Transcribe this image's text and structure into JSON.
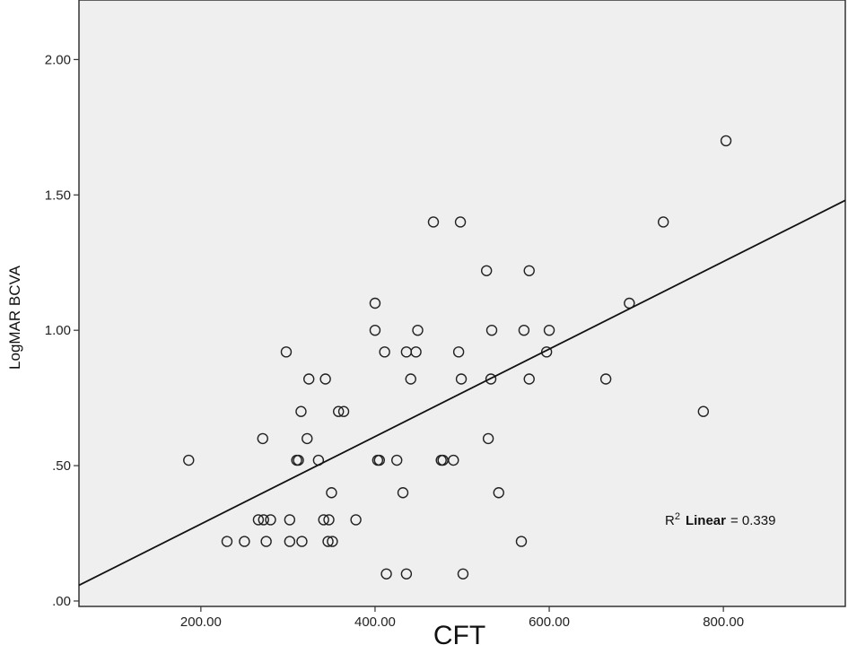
{
  "chart_data": {
    "type": "scatter",
    "xlabel": "CFT",
    "ylabel": "LogMAR BCVA",
    "xlim": [
      60,
      940
    ],
    "ylim": [
      -0.02,
      2.22
    ],
    "x_ticks": [
      200,
      400,
      600,
      800
    ],
    "x_tick_labels": [
      "200.00",
      "400.00",
      "600.00",
      "800.00"
    ],
    "y_ticks": [
      0,
      0.5,
      1.0,
      1.5,
      2.0
    ],
    "y_tick_labels": [
      ".00",
      ".50",
      "1.00",
      "1.50",
      "2.00"
    ],
    "grid": false,
    "background": "#efefef",
    "points": [
      {
        "x": 186,
        "y": 0.52
      },
      {
        "x": 230,
        "y": 0.22
      },
      {
        "x": 250,
        "y": 0.22
      },
      {
        "x": 266,
        "y": 0.3
      },
      {
        "x": 271,
        "y": 0.6
      },
      {
        "x": 272,
        "y": 0.3
      },
      {
        "x": 275,
        "y": 0.22
      },
      {
        "x": 280,
        "y": 0.3
      },
      {
        "x": 298,
        "y": 0.92
      },
      {
        "x": 302,
        "y": 0.3
      },
      {
        "x": 302,
        "y": 0.22
      },
      {
        "x": 310,
        "y": 0.52
      },
      {
        "x": 312,
        "y": 0.52
      },
      {
        "x": 315,
        "y": 0.7
      },
      {
        "x": 316,
        "y": 0.22
      },
      {
        "x": 322,
        "y": 0.6
      },
      {
        "x": 324,
        "y": 0.82
      },
      {
        "x": 335,
        "y": 0.52
      },
      {
        "x": 341,
        "y": 0.3
      },
      {
        "x": 343,
        "y": 0.82
      },
      {
        "x": 346,
        "y": 0.22
      },
      {
        "x": 347,
        "y": 0.3
      },
      {
        "x": 350,
        "y": 0.4
      },
      {
        "x": 351,
        "y": 0.22
      },
      {
        "x": 358,
        "y": 0.7
      },
      {
        "x": 364,
        "y": 0.7
      },
      {
        "x": 378,
        "y": 0.3
      },
      {
        "x": 400,
        "y": 1.1
      },
      {
        "x": 400,
        "y": 1.0
      },
      {
        "x": 403,
        "y": 0.52
      },
      {
        "x": 405,
        "y": 0.52
      },
      {
        "x": 411,
        "y": 0.92
      },
      {
        "x": 413,
        "y": 0.1
      },
      {
        "x": 425,
        "y": 0.52
      },
      {
        "x": 432,
        "y": 0.4
      },
      {
        "x": 436,
        "y": 0.92
      },
      {
        "x": 436,
        "y": 0.1
      },
      {
        "x": 441,
        "y": 0.82
      },
      {
        "x": 447,
        "y": 0.92
      },
      {
        "x": 449,
        "y": 1.0
      },
      {
        "x": 467,
        "y": 1.4
      },
      {
        "x": 476,
        "y": 0.52
      },
      {
        "x": 478,
        "y": 0.52
      },
      {
        "x": 490,
        "y": 0.52
      },
      {
        "x": 496,
        "y": 0.92
      },
      {
        "x": 498,
        "y": 1.4
      },
      {
        "x": 499,
        "y": 0.82
      },
      {
        "x": 501,
        "y": 0.1
      },
      {
        "x": 528,
        "y": 1.22
      },
      {
        "x": 530,
        "y": 0.6
      },
      {
        "x": 533,
        "y": 0.82
      },
      {
        "x": 534,
        "y": 1.0
      },
      {
        "x": 542,
        "y": 0.4
      },
      {
        "x": 568,
        "y": 0.22
      },
      {
        "x": 571,
        "y": 1.0
      },
      {
        "x": 577,
        "y": 1.22
      },
      {
        "x": 577,
        "y": 0.82
      },
      {
        "x": 597,
        "y": 0.92
      },
      {
        "x": 600,
        "y": 1.0
      },
      {
        "x": 665,
        "y": 0.82
      },
      {
        "x": 692,
        "y": 1.1
      },
      {
        "x": 731,
        "y": 1.4
      },
      {
        "x": 777,
        "y": 0.7
      },
      {
        "x": 803,
        "y": 1.7
      }
    ],
    "fit_line": {
      "type": "linear",
      "x": [
        60,
        940
      ],
      "y": [
        0.058,
        1.48
      ]
    },
    "annotation": {
      "r2_symbol": "R",
      "r2_superscript": "2",
      "r2_label": "Linear",
      "r2_equals": "= 0.339"
    }
  }
}
